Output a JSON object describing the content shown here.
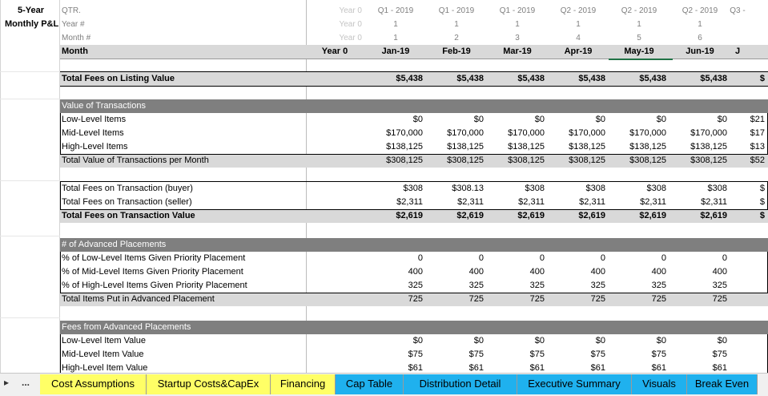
{
  "corner": {
    "line1": "5-Year",
    "line2": "Monthly P&L"
  },
  "header_rows": {
    "qtr_label": "QTR.",
    "year_num_label": "Year #",
    "month_num_label": "Month #",
    "month_label": "Month"
  },
  "columns": [
    {
      "qtr": "Year 0",
      "year": "Year 0",
      "month_num": "Year 0",
      "month": "Year 0"
    },
    {
      "qtr": "Q1 - 2019",
      "year": "1",
      "month_num": "1",
      "month": "Jan-19"
    },
    {
      "qtr": "Q1 - 2019",
      "year": "1",
      "month_num": "2",
      "month": "Feb-19"
    },
    {
      "qtr": "Q1 - 2019",
      "year": "1",
      "month_num": "3",
      "month": "Mar-19"
    },
    {
      "qtr": "Q2 - 2019",
      "year": "1",
      "month_num": "4",
      "month": "Apr-19"
    },
    {
      "qtr": "Q2 - 2019",
      "year": "1",
      "month_num": "5",
      "month": "May-19"
    },
    {
      "qtr": "Q2 - 2019",
      "year": "1",
      "month_num": "6",
      "month": "Jun-19"
    },
    {
      "qtr": "Q3 -",
      "year": "",
      "month_num": "",
      "month": "J"
    }
  ],
  "rows": {
    "listing": {
      "label": "Total Fees on Listing Value",
      "values": [
        "$5,438",
        "$5,438",
        "$5,438",
        "$5,438",
        "$5,438",
        "$5,438",
        "$"
      ]
    },
    "value_section": {
      "title": "Value of Transactions"
    },
    "low_level": {
      "label": "Low-Level Items",
      "values": [
        "$0",
        "$0",
        "$0",
        "$0",
        "$0",
        "$0",
        "$21"
      ]
    },
    "mid_level": {
      "label": "Mid-Level Items",
      "values": [
        "$170,000",
        "$170,000",
        "$170,000",
        "$170,000",
        "$170,000",
        "$170,000",
        "$17"
      ]
    },
    "high_level": {
      "label": "High-Level Items",
      "values": [
        "$138,125",
        "$138,125",
        "$138,125",
        "$138,125",
        "$138,125",
        "$138,125",
        "$13"
      ]
    },
    "total_value": {
      "label": "Total Value of Transactions per Month",
      "values": [
        "$308,125",
        "$308,125",
        "$308,125",
        "$308,125",
        "$308,125",
        "$308,125",
        "$52"
      ]
    },
    "fees_buyer": {
      "label": "Total Fees on Transaction (buyer)",
      "values": [
        "$308",
        "$308.13",
        "$308",
        "$308",
        "$308",
        "$308",
        "$"
      ]
    },
    "fees_seller": {
      "label": "Total Fees on Transaction (seller)",
      "values": [
        "$2,311",
        "$2,311",
        "$2,311",
        "$2,311",
        "$2,311",
        "$2,311",
        "$"
      ]
    },
    "fees_total": {
      "label": "Total Fees on Transaction Value",
      "values": [
        "$2,619",
        "$2,619",
        "$2,619",
        "$2,619",
        "$2,619",
        "$2,619",
        "$"
      ]
    },
    "adv_section": {
      "title": "# of Advanced Placements"
    },
    "pct_low": {
      "label": "% of Low-Level Items Given Priority Placement",
      "values": [
        "0",
        "0",
        "0",
        "0",
        "0",
        "0"
      ]
    },
    "pct_mid": {
      "label": "% of Mid-Level Items Given Priority Placement",
      "values": [
        "400",
        "400",
        "400",
        "400",
        "400",
        "400"
      ]
    },
    "pct_high": {
      "label": "% of High-Level Items Given Priority Placement",
      "values": [
        "325",
        "325",
        "325",
        "325",
        "325",
        "325"
      ]
    },
    "total_adv": {
      "label": "Total Items Put in Advanced Placement",
      "values": [
        "725",
        "725",
        "725",
        "725",
        "725",
        "725"
      ]
    },
    "fees_adv_section": {
      "title": "Fees from Advanced Placements"
    },
    "low_val": {
      "label": "Low-Level Item Value",
      "values": [
        "$0",
        "$0",
        "$0",
        "$0",
        "$0",
        "$0"
      ]
    },
    "mid_val": {
      "label": "Mid-Level Item Value",
      "values": [
        "$75",
        "$75",
        "$75",
        "$75",
        "$75",
        "$75"
      ]
    },
    "high_val": {
      "label": "High-Level Item Value",
      "values": [
        "$61",
        "$61",
        "$61",
        "$61",
        "$61",
        "$61"
      ]
    }
  },
  "tabs": {
    "nav_arrow": "▸",
    "ellipsis": "...",
    "items": [
      {
        "label": "Cost Assumptions",
        "color": "#ffff66"
      },
      {
        "label": "Startup Costs&CapEx",
        "color": "#ffff66"
      },
      {
        "label": "Financing",
        "color": "#ffff66"
      },
      {
        "label": "Cap Table",
        "color": "#1fb1ee"
      },
      {
        "label": "Distribution Detail",
        "color": "#1fb1ee"
      },
      {
        "label": "Executive Summary",
        "color": "#1fb1ee"
      },
      {
        "label": "Visuals",
        "color": "#1fb1ee"
      },
      {
        "label": "Break Even",
        "color": "#1fb1ee"
      }
    ]
  }
}
